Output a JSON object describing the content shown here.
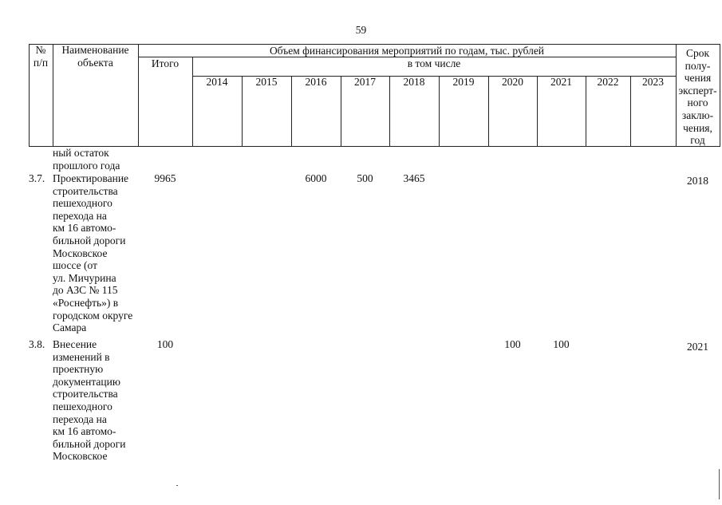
{
  "page_number": "59",
  "header": {
    "col_no": "№\nп/п",
    "col_name": "Наименование\nобъекта",
    "col_funding": "Объем финансирования мероприятий по годам, тыс. рублей",
    "col_total": "Итого",
    "col_including": "в том числе",
    "col_deadline": "Срок\nполу-\nчения\nэксперт-\nного\nзаклю-\nчения,\nгод",
    "years": [
      "2014",
      "2015",
      "2016",
      "2017",
      "2018",
      "2019",
      "2020",
      "2021",
      "2022",
      "2023"
    ]
  },
  "carryover_text": "ный остаток\nпрошлого года",
  "rows": [
    {
      "no": "3.7.",
      "name": "Проектирование\nстроительства\nпешеходного\nперехода на\nкм 16 автомо-\nбильной дороги\nМосковское\nшоссе (от\nул. Мичурина\nдо АЗС № 115\n«Роснефть») в\nгородском округе\nСамара",
      "total": "9965",
      "y2016": "6000",
      "y2017": "500",
      "y2018": "3465",
      "deadline": "2018"
    },
    {
      "no": "3.8.",
      "name": "Внесение\nизменений в\nпроектную\nдокументацию\nстроительства\nпешеходного\nперехода на\nкм 16 автомо-\nбильной дороги\nМосковское",
      "total": "100",
      "y2020": "100",
      "y2021": "100",
      "deadline": "2021"
    }
  ]
}
